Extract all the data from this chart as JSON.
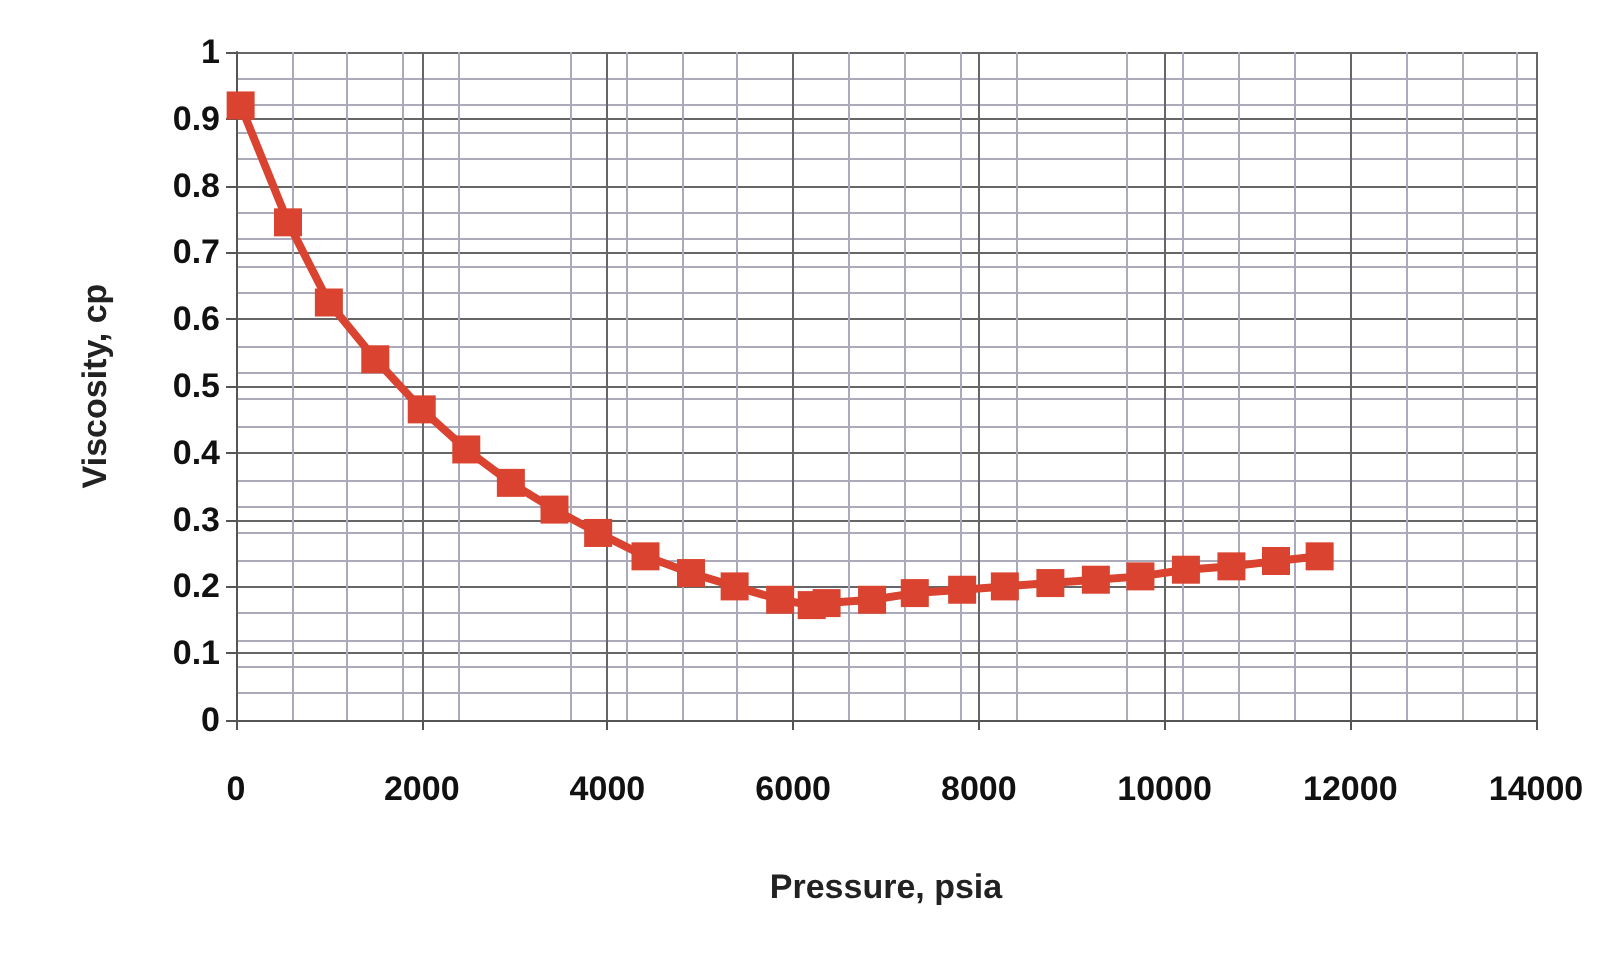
{
  "chart_data": {
    "type": "line",
    "xlabel": "Pressure, psia",
    "ylabel": "Viscosity, cp",
    "x": [
      50,
      560,
      1000,
      1500,
      2000,
      2480,
      2960,
      3430,
      3900,
      4410,
      4900,
      5370,
      5860,
      6200,
      6360,
      6850,
      7310,
      7820,
      8280,
      8770,
      9260,
      9740,
      10230,
      10720,
      11200,
      11670
    ],
    "series": [
      {
        "color": "#d9432f",
        "values": [
          0.92,
          0.745,
          0.625,
          0.54,
          0.465,
          0.405,
          0.355,
          0.315,
          0.28,
          0.245,
          0.22,
          0.2,
          0.18,
          0.172,
          0.175,
          0.18,
          0.19,
          0.195,
          0.2,
          0.205,
          0.21,
          0.215,
          0.225,
          0.23,
          0.238,
          0.245
        ]
      }
    ],
    "xlim": [
      0,
      14000
    ],
    "xticks": [
      0,
      2000,
      4000,
      6000,
      8000,
      10000,
      12000,
      14000
    ],
    "ylim": [
      0,
      1
    ],
    "yticks": [
      0,
      0.1,
      0.2,
      0.3,
      0.4,
      0.5,
      0.6,
      0.7,
      0.8,
      0.9,
      1
    ],
    "grid": true,
    "marker": "square",
    "line_style": "solid"
  }
}
